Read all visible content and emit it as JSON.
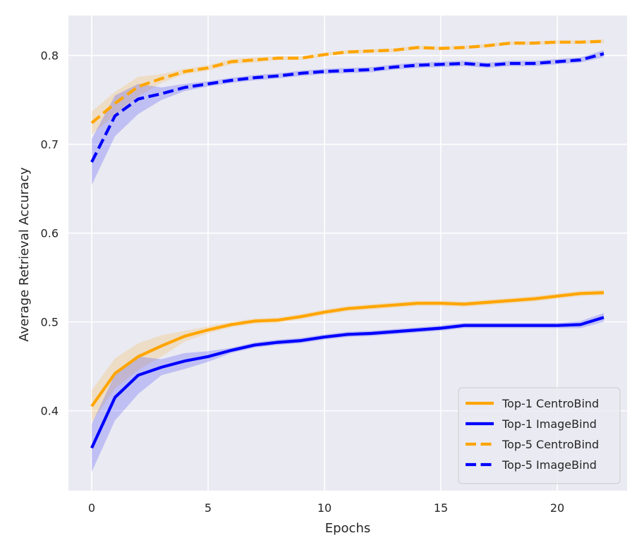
{
  "chart_data": {
    "type": "line",
    "title": "",
    "xlabel": "Epochs",
    "ylabel": "Average Retrieval Accuracy",
    "xlim": [
      -1,
      23
    ],
    "ylim": [
      0.31,
      0.845
    ],
    "xticks": [
      0,
      5,
      10,
      15,
      20
    ],
    "xtick_labels": [
      "0",
      "5",
      "10",
      "15",
      "20"
    ],
    "yticks": [
      0.4,
      0.5,
      0.6,
      0.7,
      0.8
    ],
    "ytick_labels": [
      "0.4",
      "0.5",
      "0.6",
      "0.7",
      "0.8"
    ],
    "grid": true,
    "background": "#eaeaf2",
    "legend_position": "lower-right",
    "x": [
      0,
      1,
      2,
      3,
      4,
      5,
      6,
      7,
      8,
      9,
      10,
      11,
      12,
      13,
      14,
      15,
      16,
      17,
      18,
      19,
      20,
      21,
      22
    ],
    "series": [
      {
        "name": "Top-1 CentroBind",
        "color": "#ffa500",
        "linestyle": "solid",
        "values": [
          0.405,
          0.442,
          0.461,
          0.473,
          0.484,
          0.491,
          0.497,
          0.501,
          0.502,
          0.506,
          0.511,
          0.515,
          0.517,
          0.519,
          0.521,
          0.521,
          0.52,
          0.522,
          0.524,
          0.526,
          0.529,
          0.532,
          0.533
        ],
        "band_width": [
          0.018,
          0.017,
          0.015,
          0.012,
          0.006,
          0.004,
          0.003,
          0.003,
          0.003,
          0.003,
          0.003,
          0.003,
          0.003,
          0.003,
          0.003,
          0.003,
          0.003,
          0.003,
          0.003,
          0.003,
          0.003,
          0.003,
          0.003
        ]
      },
      {
        "name": "Top-1 ImageBind",
        "color": "#0000ff",
        "linestyle": "solid",
        "values": [
          0.358,
          0.415,
          0.44,
          0.449,
          0.456,
          0.461,
          0.468,
          0.474,
          0.477,
          0.479,
          0.483,
          0.486,
          0.487,
          0.489,
          0.491,
          0.493,
          0.496,
          0.496,
          0.496,
          0.496,
          0.496,
          0.497,
          0.505
        ],
        "band_width": [
          0.027,
          0.026,
          0.021,
          0.009,
          0.009,
          0.006,
          0.003,
          0.003,
          0.003,
          0.003,
          0.003,
          0.003,
          0.003,
          0.003,
          0.003,
          0.003,
          0.003,
          0.003,
          0.003,
          0.003,
          0.003,
          0.004,
          0.005
        ]
      },
      {
        "name": "Top-5 CentroBind",
        "color": "#ffa500",
        "linestyle": "dashed",
        "values": [
          0.724,
          0.746,
          0.765,
          0.774,
          0.782,
          0.786,
          0.793,
          0.795,
          0.797,
          0.797,
          0.801,
          0.804,
          0.805,
          0.806,
          0.809,
          0.808,
          0.809,
          0.811,
          0.814,
          0.814,
          0.815,
          0.815,
          0.816
        ],
        "band_width": [
          0.013,
          0.013,
          0.011,
          0.005,
          0.003,
          0.003,
          0.003,
          0.003,
          0.002,
          0.002,
          0.002,
          0.002,
          0.002,
          0.002,
          0.002,
          0.002,
          0.002,
          0.002,
          0.002,
          0.002,
          0.002,
          0.002,
          0.002
        ]
      },
      {
        "name": "Top-5 ImageBind",
        "color": "#0000ff",
        "linestyle": "dashed",
        "values": [
          0.68,
          0.732,
          0.751,
          0.757,
          0.764,
          0.768,
          0.772,
          0.775,
          0.777,
          0.78,
          0.782,
          0.783,
          0.784,
          0.787,
          0.789,
          0.79,
          0.791,
          0.789,
          0.791,
          0.791,
          0.793,
          0.795,
          0.802
        ],
        "band_width": [
          0.026,
          0.023,
          0.017,
          0.007,
          0.004,
          0.003,
          0.003,
          0.003,
          0.003,
          0.003,
          0.003,
          0.003,
          0.003,
          0.003,
          0.003,
          0.003,
          0.003,
          0.003,
          0.003,
          0.003,
          0.003,
          0.003,
          0.004
        ]
      }
    ]
  }
}
